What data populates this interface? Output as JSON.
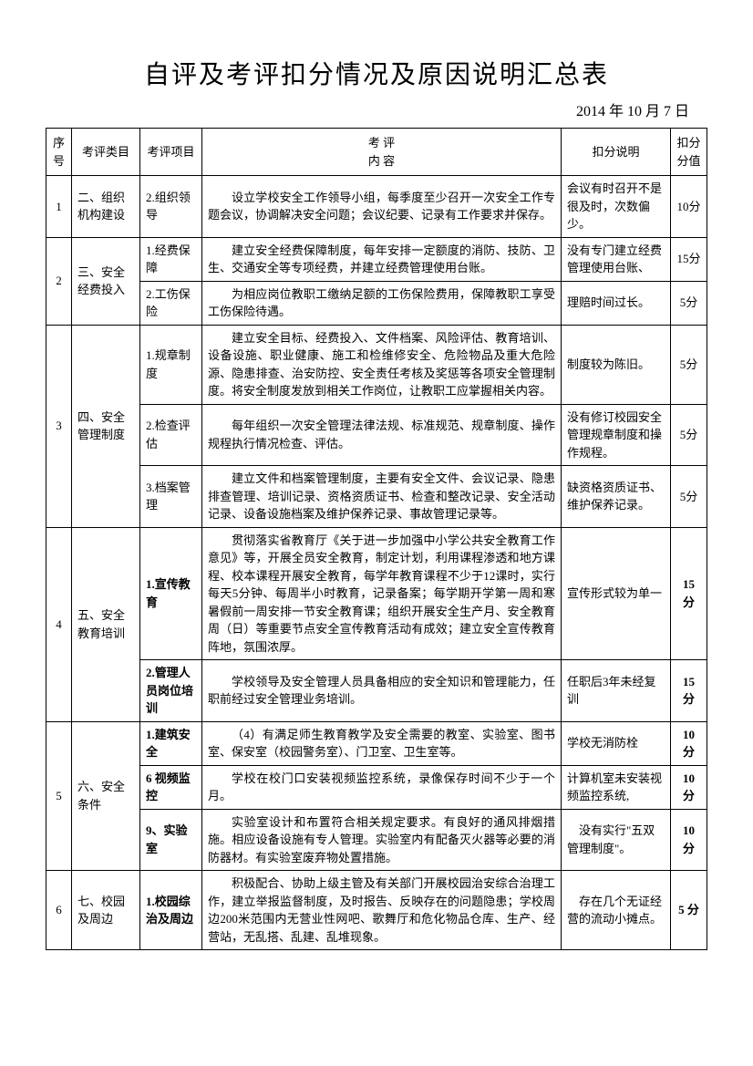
{
  "title": "自评及考评扣分情况及原因说明汇总表",
  "date": "2014 年 10 月 7 日",
  "headers": {
    "seq": "序号",
    "cat": "考评类目",
    "item": "考评项目",
    "content": "考 评\n内 容",
    "reason": "扣分说明",
    "score": "扣分分值"
  },
  "rows": [
    {
      "seq": "1",
      "cat": "二、组织机构建设",
      "item": "2.组织领导",
      "content": "设立学校安全工作领导小组，每季度至少召开一次安全工作专题会议，协调解决安全问题；会议纪要、记录有工作要求并保存。",
      "reason": "会议有时召开不是很及时，次数偏少。",
      "score": "10分"
    },
    {
      "seq": "2",
      "cat": "三、安全经费投入",
      "cat_rowspan": 2,
      "item": "1.经费保障",
      "content": "建立安全经费保障制度，每年安排一定额度的消防、技防、卫生、交通安全等专项经费，并建立经费管理使用台账。",
      "reason": "没有专门建立经费管理使用台账、",
      "score": "15分"
    },
    {
      "item": "2.工伤保险",
      "content": "为相应岗位教职工缴纳足额的工伤保险费用，保障教职工享受工伤保险待遇。",
      "reason": "理赔时间过长。",
      "score": "5分"
    },
    {
      "seq": "3",
      "cat": "四、安全管理制度",
      "cat_rowspan": 3,
      "item": "1.规章制度",
      "content": "建立安全目标、经费投入、文件档案、风险评估、教育培训、设备设施、职业健康、施工和检维修安全、危险物品及重大危险源、隐患排查、治安防控、安全责任考核及奖惩等各项安全管理制度。将安全制度发放到相关工作岗位，让教职工应掌握相关内容。",
      "reason": "制度较为陈旧。",
      "score": "5分"
    },
    {
      "item": "2.检查评估",
      "content": "每年组织一次安全管理法律法规、标准规范、规章制度、操作规程执行情况检查、评估。",
      "reason": "没有修订校园安全管理规章制度和操作规程。",
      "score": "5分"
    },
    {
      "item": "3.档案管理",
      "content": "建立文件和档案管理制度，主要有安全文件、会议记录、隐患排查管理、培训记录、资格资质证书、检查和整改记录、安全活动记录、设备设施档案及维护保养记录、事故管理记录等。",
      "reason": "缺资格资质证书、维护保养记录。",
      "score": "5分"
    },
    {
      "seq": "4",
      "cat": "五、安全　教育培训",
      "cat_rowspan": 2,
      "item": "1.宣传教育",
      "item_bold": true,
      "content": "贯彻落实省教育厅《关于进一步加强中小学公共安全教育工作意见》等，开展全员安全教育，制定计划，利用课程渗透和地方课程、校本课程开展安全教育，每学年教育课程不少于12课时，实行每天5分钟、每周半小时教育，记录备案；每学期开学第一周和寒暑假前一周安排一节安全教育课；组织开展安全生产月、安全教育周（日）等重要节点安全宣传教育活动有成效；建立安全宣传教育阵地，氛围浓厚。",
      "reason": "宣传形式较为单一",
      "score": "15 分",
      "score_bold": true
    },
    {
      "item": "2.管理人员岗位培训",
      "item_bold": true,
      "content": "学校领导及安全管理人员具备相应的安全知识和管理能力，任职前经过安全管理业务培训。",
      "reason": "任职后3年未经复训",
      "score": "15 分",
      "score_bold": true
    },
    {
      "seq": "5",
      "cat": "六、安全条件",
      "cat_rowspan": 3,
      "item": "1.建筑安全",
      "item_bold": true,
      "content": "（4）有满足师生教育教学及安全需要的教室、实验室、图书室、保安室（校园警务室）、门卫室、卫生室等。",
      "reason": "学校无消防栓",
      "score": "10 分",
      "score_bold": true
    },
    {
      "item": "6 视频监控",
      "item_bold": true,
      "content": "学校在校门口安装视频监控系统，录像保存时间不少于一个月。",
      "reason": "计算机室未安装视频监控系统,",
      "score": "10 分",
      "score_bold": true
    },
    {
      "item": "9、实验室",
      "item_bold": true,
      "content": "实验室设计和布置符合相关规定要求。有良好的通风排烟措施。相应设备设施有专人管理。实验室内有配备灭火器等必要的消防器材。有实验室废弃物处置措施。",
      "reason": "没有实行\"五双管理制度\"。",
      "reason_indent": true,
      "score": "10 分",
      "score_bold": true
    },
    {
      "seq": "6",
      "cat": "七、校园及周边",
      "item": "1.校园综治及周边",
      "item_bold": true,
      "content": "积极配合、协助上级主管及有关部门开展校园治安综合治理工作，建立举报监督制度，及时报告、反映存在的问题隐患；学校周边200米范围内无营业性网吧、歌舞厅和危化物品仓库、生产、经营站，无乱搭、乱建、乱堆现象。",
      "reason": "存在几个无证经营的流动小摊点。",
      "reason_indent": true,
      "score": "5 分",
      "score_bold": true
    }
  ]
}
